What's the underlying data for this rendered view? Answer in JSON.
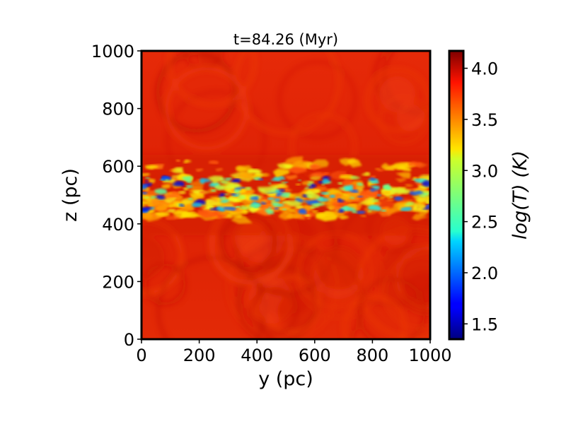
{
  "chart_data": {
    "type": "heatmap",
    "title": "t=84.26 (Myr)",
    "xlabel": "y (pc)",
    "ylabel": "z (pc)",
    "xlim": [
      0,
      1000
    ],
    "ylim": [
      0,
      1000
    ],
    "xticks": [
      {
        "value": 0,
        "label": "0"
      },
      {
        "value": 200,
        "label": "200"
      },
      {
        "value": 400,
        "label": "400"
      },
      {
        "value": 600,
        "label": "600"
      },
      {
        "value": 800,
        "label": "800"
      },
      {
        "value": 1000,
        "label": "1000"
      }
    ],
    "yticks": [
      {
        "value": 0,
        "label": "0"
      },
      {
        "value": 200,
        "label": "200"
      },
      {
        "value": 400,
        "label": "400"
      },
      {
        "value": 600,
        "label": "600"
      },
      {
        "value": 800,
        "label": "800"
      },
      {
        "value": 1000,
        "label": "1000"
      }
    ],
    "colorbar": {
      "label": "log(T) (K)",
      "range": [
        1.35,
        4.17
      ],
      "colormap": "jet",
      "ticks": [
        {
          "value": 1.5,
          "label": "1.5"
        },
        {
          "value": 2.0,
          "label": "2.0"
        },
        {
          "value": 2.5,
          "label": "2.5"
        },
        {
          "value": 3.0,
          "label": "3.0"
        },
        {
          "value": 3.5,
          "label": "3.5"
        },
        {
          "value": 4.0,
          "label": "4.0"
        }
      ]
    },
    "features": {
      "background_logT": 3.9,
      "cold_layer_z_range": [
        430,
        600
      ],
      "cold_layer_min_logT": 1.4
    }
  }
}
